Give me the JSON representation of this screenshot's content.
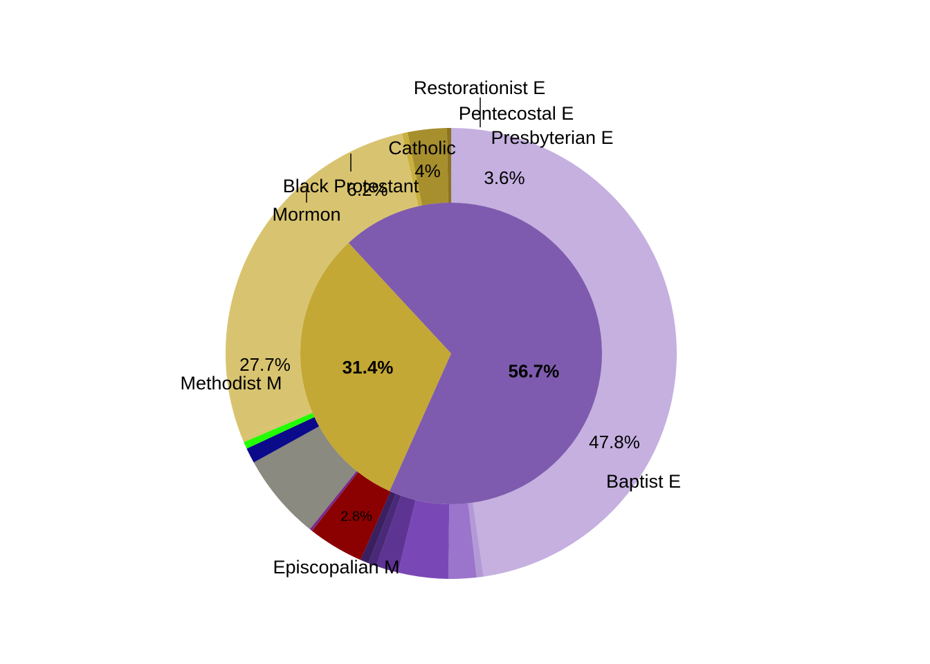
{
  "chart_data": [
    {
      "type": "pie",
      "ring": "inner",
      "series": [
        {
          "name": "",
          "value": 56.7,
          "label": "56.7%",
          "color": "#7e5bae"
        },
        {
          "name": "",
          "value": 31.4,
          "label": "31.4%",
          "color": "#c4a835"
        },
        {
          "name": "",
          "value": 11.9,
          "label": "",
          "color": "#7e5bae"
        }
      ]
    },
    {
      "type": "pie",
      "ring": "outer",
      "series": [
        {
          "name": "Baptist E",
          "value": 47.8,
          "label": "47.8%",
          "color": "#c5b0e0"
        },
        {
          "name": "",
          "value": 0.5,
          "label": "",
          "color": "#b39ad6"
        },
        {
          "name": "",
          "value": 2.0,
          "label": "",
          "color": "#9b74cc"
        },
        {
          "name": "Presbyterian E",
          "value": 3.6,
          "label": "3.6%",
          "color": "#7a48b6"
        },
        {
          "name": "Pentecostal E",
          "value": 1.6,
          "label": "",
          "color": "#5e3493"
        },
        {
          "name": "",
          "value": 0.6,
          "label": "",
          "color": "#4a2a78"
        },
        {
          "name": "Restorationist E",
          "value": 0.6,
          "label": "",
          "color": "#3a2060"
        },
        {
          "name": "Catholic",
          "value": 4.0,
          "label": "4%",
          "color": "#8b0000"
        },
        {
          "name": "",
          "value": 0.2,
          "label": "",
          "color": "#7a2a8a"
        },
        {
          "name": "",
          "value": 6.2,
          "label": "6.2%",
          "color": "#8a8a80"
        },
        {
          "name": "Black Protestant",
          "value": 1.1,
          "label": "",
          "color": "#0a0a8a"
        },
        {
          "name": "Mormon",
          "value": 0.5,
          "label": "",
          "color": "#22ff00"
        },
        {
          "name": "",
          "value": 0.3,
          "label": "",
          "color": "#d8c470"
        },
        {
          "name": "Methodist M",
          "value": 27.7,
          "label": "27.7%",
          "color": "#d8c470"
        },
        {
          "name": "",
          "value": 0.4,
          "label": "",
          "color": "#c9b040"
        },
        {
          "name": "Episcopalian M",
          "value": 2.8,
          "label": "2.8%",
          "color": "#a88f2e"
        },
        {
          "name": "",
          "value": 0.3,
          "label": "",
          "color": "#8a7420"
        }
      ]
    }
  ]
}
